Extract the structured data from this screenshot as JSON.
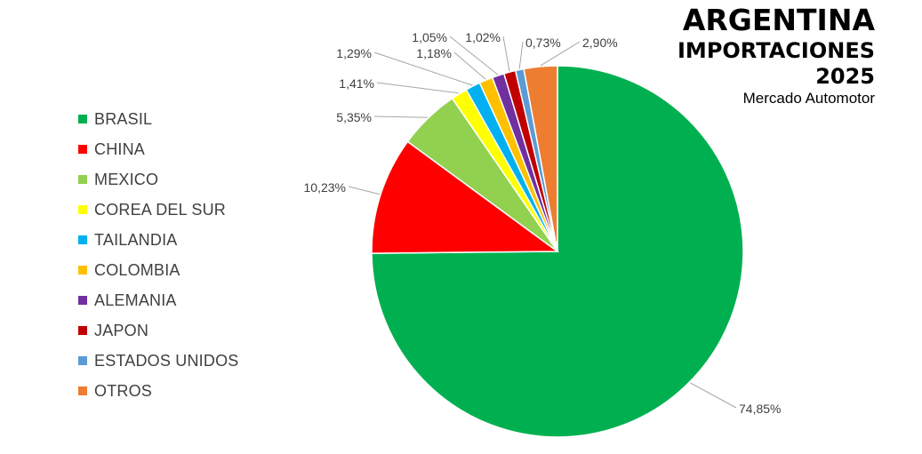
{
  "title": {
    "line1": "ARGENTINA",
    "line2": "IMPORTACIONES",
    "line3": "2025",
    "subtitle": "Mercado Automotor"
  },
  "chart_data": {
    "type": "pie",
    "legend_position": "left",
    "start_angle": "top, clockwise",
    "slices": [
      {
        "name": "BRASIL",
        "value": 74.85,
        "label": "74,85%",
        "color": "#00B050"
      },
      {
        "name": "CHINA",
        "value": 10.23,
        "label": "10,23%",
        "color": "#FF0000"
      },
      {
        "name": "MEXICO",
        "value": 5.35,
        "label": "5,35%",
        "color": "#92D050"
      },
      {
        "name": "COREA DEL SUR",
        "value": 1.41,
        "label": "1,41%",
        "color": "#FFFF00"
      },
      {
        "name": "TAILANDIA",
        "value": 1.29,
        "label": "1,29%",
        "color": "#00B0F0"
      },
      {
        "name": "COLOMBIA",
        "value": 1.18,
        "label": "1,18%",
        "color": "#FFC000"
      },
      {
        "name": "ALEMANIA",
        "value": 1.05,
        "label": "1,05%",
        "color": "#7030A0"
      },
      {
        "name": "JAPON",
        "value": 1.02,
        "label": "1,02%",
        "color": "#C00000"
      },
      {
        "name": "ESTADOS UNIDOS",
        "value": 0.73,
        "label": "0,73%",
        "color": "#5B9BD5"
      },
      {
        "name": "OTROS",
        "value": 2.9,
        "label": "2,90%",
        "color": "#ED7D31"
      }
    ]
  }
}
